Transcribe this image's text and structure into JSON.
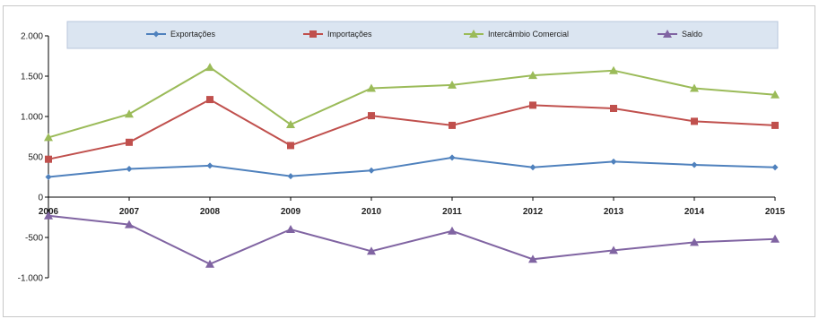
{
  "chart_data": {
    "type": "line",
    "categories": [
      "2006",
      "2007",
      "2008",
      "2009",
      "2010",
      "2011",
      "2012",
      "2013",
      "2014",
      "2015"
    ],
    "series": [
      {
        "name": "Exportações",
        "color": "#4f81bd",
        "marker": "diamond",
        "values": [
          250,
          350,
          390,
          260,
          330,
          490,
          370,
          440,
          400,
          370
        ]
      },
      {
        "name": "Importações",
        "color": "#c0504d",
        "marker": "square",
        "values": [
          470,
          680,
          1210,
          640,
          1010,
          890,
          1140,
          1100,
          940,
          890
        ]
      },
      {
        "name": "Intercâmbio Comercial",
        "color": "#9bbb59",
        "marker": "triangle",
        "values": [
          740,
          1030,
          1610,
          900,
          1350,
          1390,
          1510,
          1570,
          1350,
          1270
        ]
      },
      {
        "name": "Saldo",
        "color": "#8064a2",
        "marker": "triangle",
        "values": [
          -230,
          -340,
          -830,
          -400,
          -670,
          -420,
          -770,
          -660,
          -560,
          -520
        ]
      }
    ],
    "yticks": [
      2000,
      1500,
      1000,
      500,
      0,
      -500,
      -1000
    ],
    "ytick_labels": [
      "2.000",
      "1.500",
      "1.000",
      "500",
      "0",
      "-500",
      "-1.000"
    ],
    "ylim": [
      -1000,
      2000
    ],
    "grid": false,
    "legend_position": "top"
  }
}
